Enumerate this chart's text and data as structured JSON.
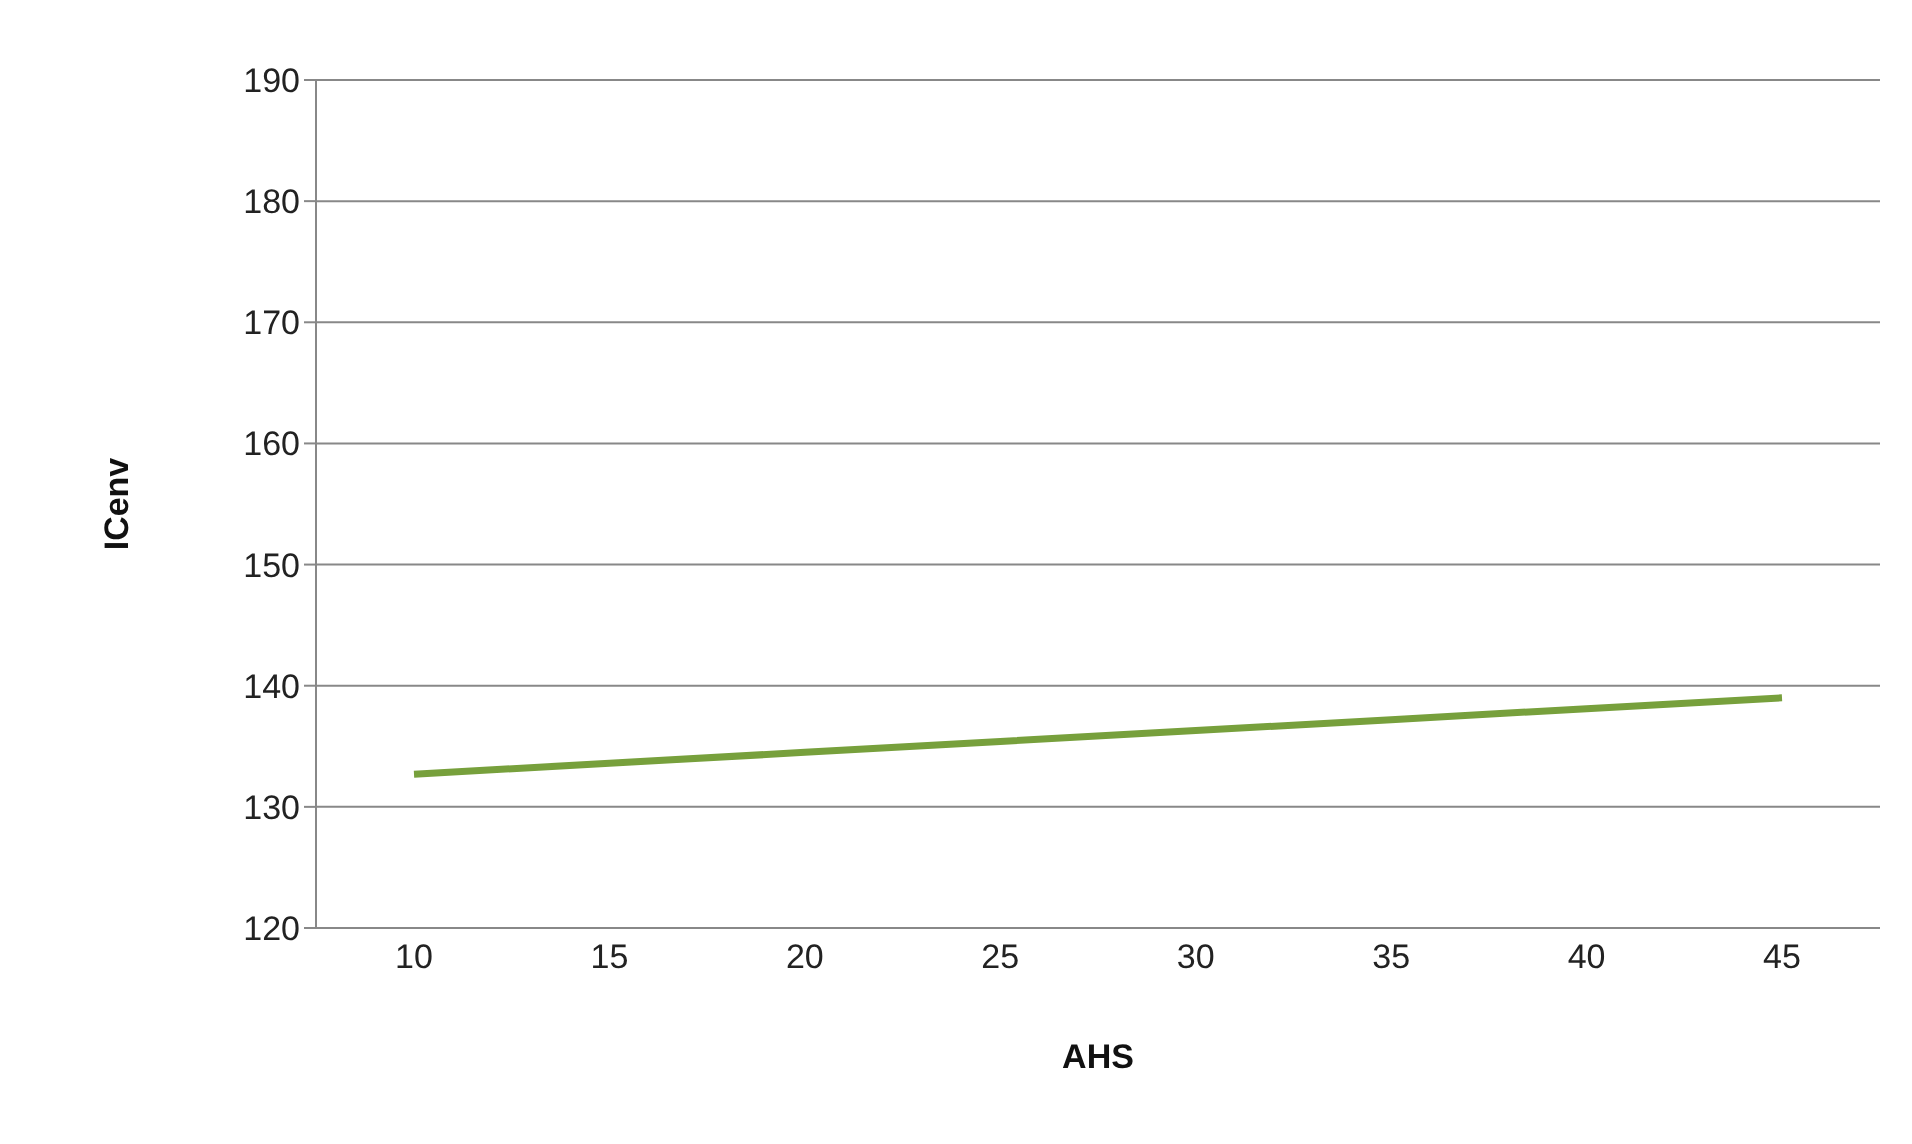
{
  "chart_data": {
    "type": "line",
    "xlabel": "AHS",
    "ylabel": "ICenv",
    "categories": [
      "10",
      "15",
      "20",
      "25",
      "30",
      "35",
      "40",
      "45"
    ],
    "series": [
      {
        "color": "#77a03c",
        "values": [
          132.7,
          133.6,
          134.5,
          135.4,
          136.3,
          137.2,
          138.1,
          139.0
        ]
      }
    ],
    "ylim": [
      120,
      190
    ],
    "yticks": [
      120,
      130,
      140,
      150,
      160,
      170,
      180,
      190
    ],
    "grid": "y",
    "marker": "none",
    "line_style": "solid"
  }
}
